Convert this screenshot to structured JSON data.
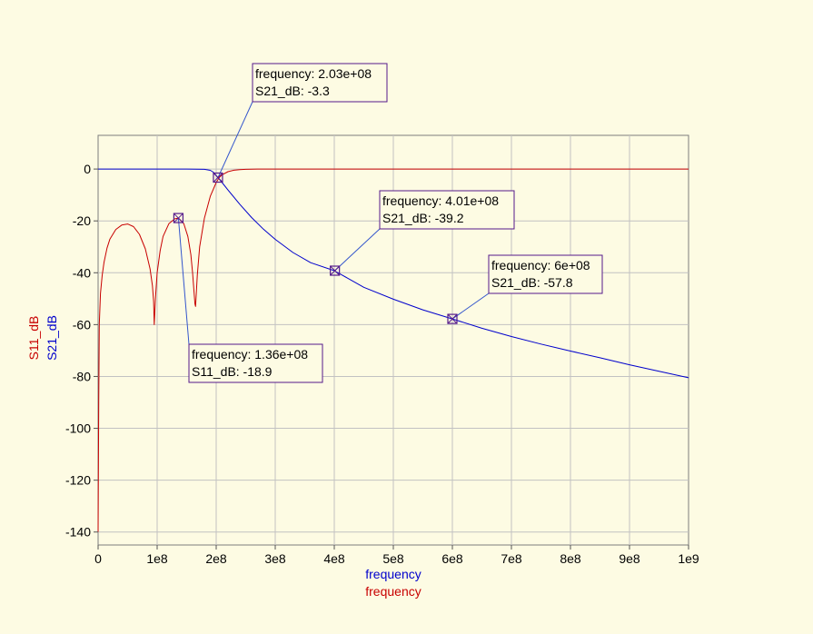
{
  "chart_data": {
    "type": "line",
    "title": "",
    "xlabel": [
      "frequency",
      "frequency"
    ],
    "ylabel": [
      "S11_dB",
      "S21_dB"
    ],
    "xlim": [
      0,
      1000000000
    ],
    "ylim": [
      -145,
      13
    ],
    "x_ticks": [
      0,
      100000000,
      200000000,
      300000000,
      400000000,
      500000000,
      600000000,
      700000000,
      800000000,
      900000000,
      1000000000
    ],
    "x_tick_labels": [
      "0",
      "1e8",
      "2e8",
      "3e8",
      "4e8",
      "5e8",
      "6e8",
      "7e8",
      "8e8",
      "9e8",
      "1e9"
    ],
    "y_ticks": [
      0,
      -20,
      -40,
      -60,
      -80,
      -100,
      -120,
      -140
    ],
    "y_tick_labels": [
      "0",
      "-20",
      "-40",
      "-60",
      "-80",
      "-100",
      "-120",
      "-140"
    ],
    "grid": true,
    "series": [
      {
        "name": "S21_dB",
        "color": "#0000cc",
        "x": [
          0,
          20000000,
          50000000,
          100000000,
          150000000,
          180000000,
          190000000,
          195000000,
          200000000,
          203000000,
          210000000,
          220000000,
          240000000,
          260000000,
          280000000,
          300000000,
          330000000,
          360000000,
          400000000,
          450000000,
          500000000,
          550000000,
          600000000,
          650000000,
          700000000,
          750000000,
          800000000,
          850000000,
          900000000,
          950000000,
          1000000000
        ],
        "values": [
          0,
          0,
          0,
          0,
          0,
          -0.1,
          -0.5,
          -1.2,
          -2.5,
          -3.3,
          -5.2,
          -8.1,
          -13.6,
          -18.7,
          -23.2,
          -27.1,
          -32.2,
          -36.1,
          -39.2,
          -45.6,
          -50.2,
          -54.3,
          -57.8,
          -61.4,
          -64.6,
          -67.5,
          -70.2,
          -72.8,
          -75.5,
          -78.0,
          -80.5
        ]
      },
      {
        "name": "S11_dB",
        "color": "#c80000",
        "x": [
          0,
          1000000,
          2000000,
          4000000,
          7000000,
          10000000,
          15000000,
          20000000,
          30000000,
          40000000,
          50000000,
          60000000,
          70000000,
          80000000,
          88000000,
          92000000,
          94000000,
          95000000,
          97000000,
          100000000,
          105000000,
          110000000,
          120000000,
          130000000,
          136000000,
          145000000,
          152000000,
          157000000,
          160000000,
          162000000,
          164000000,
          165000000,
          168000000,
          172000000,
          180000000,
          190000000,
          200000000,
          205000000,
          210000000,
          220000000,
          230000000,
          240000000,
          250000000,
          270000000,
          300000000,
          400000000,
          600000000,
          800000000,
          1000000000
        ],
        "values": [
          -140,
          -90,
          -60,
          -48,
          -41,
          -36,
          -30.5,
          -27,
          -23.3,
          -21.6,
          -21.2,
          -22.2,
          -25.2,
          -30.8,
          -38.5,
          -45,
          -51,
          -60,
          -50,
          -40,
          -31.5,
          -26,
          -21,
          -19.2,
          -18.9,
          -21,
          -26,
          -33,
          -40,
          -46,
          -52,
          -53,
          -41,
          -30,
          -19,
          -10.5,
          -5.2,
          -3.3,
          -2.2,
          -1.0,
          -0.45,
          -0.2,
          -0.1,
          0,
          0,
          0,
          0,
          0,
          0
        ]
      }
    ],
    "markers": [
      {
        "series": "S21_dB",
        "x": 203000000,
        "y": -3.3,
        "line1": "frequency: 2.03e+08",
        "line2": "S21_dB: -3.3"
      },
      {
        "series": "S21_dB",
        "x": 401000000,
        "y": -39.2,
        "line1": "frequency: 4.01e+08",
        "line2": "S21_dB: -39.2"
      },
      {
        "series": "S21_dB",
        "x": 600000000,
        "y": -57.8,
        "line1": "frequency: 6e+08",
        "line2": "S21_dB: -57.8"
      },
      {
        "series": "S11_dB",
        "x": 136000000,
        "y": -18.9,
        "line1": "frequency: 1.36e+08",
        "line2": "S11_dB: -18.9"
      }
    ]
  }
}
